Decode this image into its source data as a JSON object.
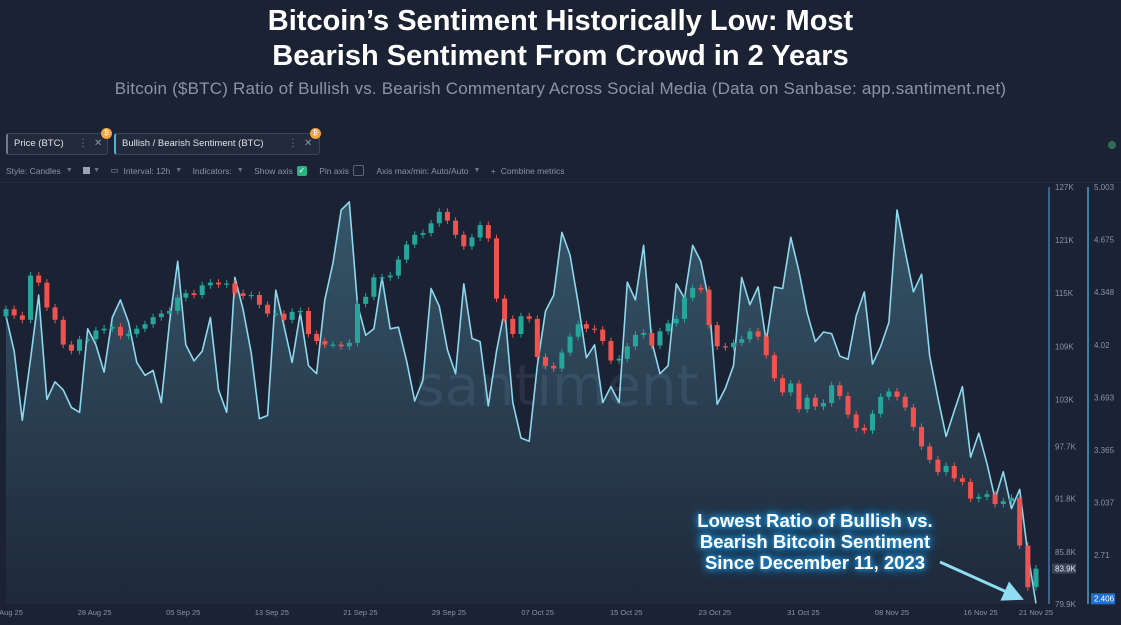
{
  "header": {
    "title_line1": "Bitcoin’s Sentiment Historically Low: Most",
    "title_line2": "Bearish Sentiment From Crowd in 2 Years",
    "subtitle": "Bitcoin ($BTC) Ratio of Bullish vs. Bearish Commentary Across Social Media (Data on Sanbase: app.santiment.net)"
  },
  "metric_tabs": [
    {
      "label": "Price (BTC)"
    },
    {
      "label": "Bullish / Bearish Sentiment (BTC)"
    }
  ],
  "toolbar": {
    "style_label": "Style: Candles",
    "interval_label": "Interval: 12h",
    "indicators_label": "Indicators:",
    "show_axis_label": "Show axis",
    "pin_axis_label": "Pin axis",
    "axis_minmax_label": "Axis max/min: Auto/Auto",
    "combine_label": "Combine metrics"
  },
  "colors": {
    "up": "#26a69a",
    "down": "#ef5350",
    "sentiment": "#8ed8ee",
    "price_axis": "#4c90d4",
    "sentiment_axis": "#55c3e6"
  },
  "annotation": {
    "line1": "Lowest Ratio of Bullish vs.",
    "line2": "Bearish Bitcoin Sentiment",
    "line3": "Since December 11, 2023"
  },
  "chart_data": {
    "type": "line",
    "title": "Bitcoin’s Sentiment Historically Low: Most Bearish Sentiment From Crowd in 2 Years",
    "watermark": "santiment",
    "x_start": "2025-08-20",
    "x_end": "2025-11-21",
    "x_tick_labels": [
      "20 Aug 25",
      "28 Aug 25",
      "05 Sep 25",
      "13 Sep 25",
      "21 Sep 25",
      "29 Sep 25",
      "07 Oct 25",
      "15 Oct 25",
      "23 Oct 25",
      "31 Oct 25",
      "08 Nov 25",
      "16 Nov 25",
      "21 Nov 25"
    ],
    "price_axis": {
      "unit": "USD",
      "range": [
        79900,
        127000
      ],
      "tick_values": [
        127000,
        121000,
        115000,
        109000,
        103000,
        97700,
        91800,
        85800,
        79900
      ],
      "tick_labels": [
        "127K",
        "121K",
        "115K",
        "109K",
        "103K",
        "97.7K",
        "91.8K",
        "85.8K",
        "79.9K"
      ],
      "last_value_label": "83.9K"
    },
    "sentiment_axis": {
      "range": [
        2.406,
        5.003
      ],
      "tick_values": [
        5.003,
        4.675,
        4.348,
        4.02,
        3.693,
        3.365,
        3.037,
        2.71
      ],
      "tick_labels": [
        "5.003",
        "4.675",
        "4.348",
        "4.02",
        "3.693",
        "3.365",
        "3.037",
        "2.71"
      ],
      "last_value_label": "2.406"
    },
    "series": [
      {
        "name": "Price (BTC)",
        "type": "candlestick",
        "close": [
          113200,
          112500,
          112000,
          117000,
          116200,
          113400,
          112000,
          109200,
          108500,
          109800,
          109800,
          110800,
          111000,
          111200,
          110200,
          110400,
          111000,
          111500,
          112300,
          112700,
          113000,
          114500,
          115000,
          114800,
          115900,
          116200,
          116000,
          116100,
          115000,
          114700,
          114800,
          113700,
          112700,
          112700,
          112000,
          112900,
          113000,
          110400,
          109600,
          109200,
          109200,
          109000,
          109400,
          113800,
          114600,
          116800,
          116800,
          117000,
          118800,
          120500,
          121600,
          121800,
          122900,
          124200,
          123200,
          121600,
          120300,
          121300,
          122700,
          121200,
          114400,
          112100,
          110400,
          112400,
          112100,
          107800,
          106800,
          106500,
          108300,
          110100,
          111500,
          111000,
          110900,
          109600,
          107400,
          107600,
          109000,
          110300,
          110500,
          109100,
          110700,
          111600,
          112100,
          114500,
          115600,
          115400,
          111400,
          109000,
          108900,
          109400,
          109800,
          110700,
          110100,
          108000,
          105400,
          103800,
          104800,
          101900,
          103200,
          102200,
          102600,
          104600,
          103400,
          101300,
          99800,
          99500,
          101400,
          103300,
          103900,
          103300,
          102100,
          99900,
          97700,
          96200,
          94800,
          95500,
          94100,
          93700,
          91800,
          92000,
          92300,
          91200,
          91500,
          91900,
          86500,
          81800,
          83900
        ],
        "open": [
          112400,
          113200,
          112500,
          112000,
          117000,
          116200,
          113400,
          112000,
          109200,
          108500,
          109800,
          109800,
          110800,
          111000,
          111200,
          110200,
          110400,
          111000,
          111500,
          112300,
          112700,
          113000,
          114500,
          115000,
          114800,
          115900,
          116200,
          116000,
          116100,
          115000,
          114700,
          114800,
          113700,
          112700,
          112700,
          112000,
          112900,
          113000,
          110400,
          109600,
          109200,
          109200,
          109000,
          109400,
          113800,
          114600,
          116800,
          116800,
          117000,
          118800,
          120500,
          121600,
          121800,
          122900,
          124200,
          123200,
          121600,
          120300,
          121300,
          122700,
          121200,
          114400,
          112100,
          110400,
          112400,
          112100,
          107800,
          106800,
          106500,
          108300,
          110100,
          111500,
          111000,
          110900,
          109600,
          107400,
          107600,
          109000,
          110300,
          110500,
          109100,
          110700,
          111600,
          112100,
          114500,
          115600,
          115400,
          111400,
          109000,
          108900,
          109400,
          109800,
          110700,
          110100,
          108000,
          105400,
          103800,
          104800,
          101900,
          103200,
          102200,
          102600,
          104600,
          103400,
          101300,
          99800,
          99500,
          101400,
          103300,
          103900,
          103300,
          102100,
          99900,
          97700,
          96200,
          94800,
          95500,
          94100,
          93700,
          91800,
          92000,
          92300,
          91200,
          91500,
          91900,
          86500,
          81800
        ],
        "high": [
          113600,
          113600,
          112900,
          117400,
          117400,
          116600,
          113800,
          112400,
          109600,
          110200,
          110200,
          111200,
          111400,
          111600,
          111600,
          110800,
          111400,
          111900,
          112700,
          113100,
          113400,
          114900,
          115400,
          115400,
          116300,
          116600,
          116600,
          116500,
          116500,
          115400,
          115200,
          115200,
          114100,
          113100,
          113100,
          113300,
          113400,
          113400,
          110800,
          110000,
          109600,
          109600,
          109800,
          114200,
          115000,
          117200,
          117200,
          117400,
          119200,
          120900,
          122000,
          122200,
          123300,
          124600,
          124600,
          123600,
          122000,
          121700,
          123100,
          123100,
          121600,
          114800,
          112500,
          112800,
          112800,
          112500,
          108200,
          107200,
          108700,
          110500,
          111900,
          111900,
          111400,
          111300,
          110000,
          108000,
          109400,
          110700,
          110900,
          110900,
          111100,
          112000,
          112500,
          114900,
          116000,
          116000,
          115800,
          111800,
          109400,
          109800,
          110200,
          111100,
          111100,
          110500,
          108400,
          105800,
          105200,
          105200,
          103600,
          103600,
          103000,
          105000,
          105000,
          103800,
          101700,
          100200,
          101800,
          103700,
          104300,
          104300,
          103700,
          102500,
          100300,
          98100,
          96600,
          95900,
          95900,
          94500,
          94100,
          92400,
          92700,
          92700,
          91900,
          92300,
          92300,
          86900,
          84300
        ],
        "low": [
          112000,
          112100,
          111600,
          111600,
          115800,
          113000,
          111600,
          108800,
          108100,
          108100,
          109400,
          109400,
          110400,
          110600,
          109800,
          109800,
          110000,
          110600,
          111100,
          111900,
          112300,
          112600,
          114100,
          114400,
          114400,
          115500,
          115600,
          115600,
          114600,
          114300,
          114300,
          113300,
          112300,
          112300,
          111600,
          111600,
          112500,
          110000,
          109200,
          108800,
          108800,
          108600,
          108600,
          109000,
          113400,
          114200,
          116400,
          116400,
          116600,
          118400,
          120100,
          121200,
          121400,
          122500,
          122800,
          121200,
          119900,
          119900,
          120900,
          120800,
          114000,
          111700,
          110000,
          110000,
          111700,
          107400,
          106400,
          106100,
          106100,
          107900,
          109700,
          110600,
          110500,
          109200,
          107000,
          107000,
          107200,
          108600,
          109900,
          108700,
          108700,
          110300,
          111200,
          111700,
          114100,
          115000,
          111000,
          108600,
          108500,
          108500,
          109000,
          109400,
          109700,
          107600,
          105000,
          103400,
          103400,
          101500,
          101500,
          101800,
          101800,
          102200,
          103000,
          100900,
          99400,
          99100,
          99100,
          101000,
          102900,
          102900,
          101700,
          99500,
          97300,
          95800,
          94400,
          94400,
          93700,
          93300,
          91400,
          91400,
          91600,
          90800,
          90800,
          91100,
          86100,
          81400,
          81400
        ]
      },
      {
        "name": "Bullish / Bearish Sentiment (BTC)",
        "type": "line",
        "values": [
          4.2,
          3.98,
          3.55,
          3.93,
          4.33,
          3.68,
          3.79,
          3.74,
          3.63,
          3.6,
          4.12,
          4.02,
          3.85,
          4.19,
          4.3,
          4.16,
          3.91,
          3.83,
          3.86,
          3.66,
          4.16,
          4.54,
          4.02,
          3.92,
          3.98,
          4.19,
          3.74,
          3.6,
          4.44,
          4.24,
          3.97,
          3.56,
          3.58,
          4.36,
          4.14,
          3.91,
          4.22,
          3.89,
          3.84,
          4.3,
          4.53,
          4.86,
          4.91,
          4.27,
          4.08,
          4.12,
          4.44,
          4.12,
          4.13,
          3.92,
          3.67,
          3.8,
          4.37,
          4.26,
          3.99,
          3.84,
          4.4,
          4.06,
          4.04,
          3.64,
          3.98,
          4.24,
          3.66,
          3.44,
          3.42,
          3.89,
          4.23,
          4.33,
          4.72,
          4.58,
          4.28,
          3.94,
          4.02,
          3.66,
          3.76,
          3.66,
          4.41,
          4.3,
          4.64,
          4.04,
          3.84,
          3.89,
          4.4,
          4.31,
          4.64,
          4.54,
          4.29,
          3.65,
          3.75,
          3.89,
          4.44,
          4.27,
          4.38,
          4.04,
          4.38,
          4.37,
          4.69,
          4.48,
          4.22,
          4.04,
          4.1,
          4.09,
          3.95,
          3.93,
          4.2,
          4.35,
          3.9,
          4.01,
          4.16,
          4.86,
          4.6,
          4.35,
          4.46,
          3.95,
          3.69,
          3.45,
          3.61,
          3.76,
          3.32,
          3.47,
          3.28,
          3.06,
          3.23,
          3.0,
          3.12,
          2.72,
          2.41
        ]
      }
    ]
  }
}
